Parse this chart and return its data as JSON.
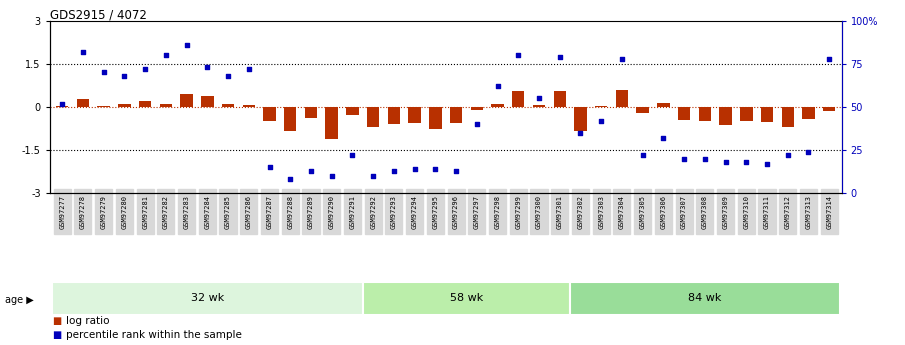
{
  "title": "GDS2915 / 4072",
  "samples": [
    "GSM97277",
    "GSM97278",
    "GSM97279",
    "GSM97280",
    "GSM97281",
    "GSM97282",
    "GSM97283",
    "GSM97284",
    "GSM97285",
    "GSM97286",
    "GSM97287",
    "GSM97288",
    "GSM97289",
    "GSM97290",
    "GSM97291",
    "GSM97292",
    "GSM97293",
    "GSM97294",
    "GSM97295",
    "GSM97296",
    "GSM97297",
    "GSM97298",
    "GSM97299",
    "GSM97300",
    "GSM97301",
    "GSM97302",
    "GSM97303",
    "GSM97304",
    "GSM97305",
    "GSM97306",
    "GSM97307",
    "GSM97308",
    "GSM97309",
    "GSM97310",
    "GSM97311",
    "GSM97312",
    "GSM97313",
    "GSM97314"
  ],
  "log_ratio": [
    0.04,
    0.28,
    0.05,
    0.1,
    0.22,
    0.1,
    0.45,
    0.38,
    0.1,
    0.06,
    -0.5,
    -0.85,
    -0.4,
    -1.1,
    -0.28,
    -0.7,
    -0.6,
    -0.55,
    -0.75,
    -0.55,
    -0.1,
    0.12,
    0.55,
    0.08,
    0.55,
    -0.85,
    0.04,
    0.6,
    -0.22,
    0.15,
    -0.45,
    -0.48,
    -0.62,
    -0.48,
    -0.52,
    -0.68,
    -0.42,
    -0.15
  ],
  "percentile_rank": [
    52,
    82,
    70,
    68,
    72,
    80,
    86,
    73,
    68,
    72,
    15,
    8,
    13,
    10,
    22,
    10,
    13,
    14,
    14,
    13,
    40,
    62,
    80,
    55,
    79,
    35,
    42,
    78,
    22,
    32,
    20,
    20,
    18,
    18,
    17,
    22,
    24,
    78
  ],
  "group_boundaries": [
    0,
    15,
    25,
    38
  ],
  "group_labels": [
    "32 wk",
    "58 wk",
    "84 wk"
  ],
  "group_colors_light": [
    "#e0f5e0",
    "#c8edbc",
    "#a8dca8"
  ],
  "bar_color": "#b83000",
  "dot_color": "#0000bb",
  "bg_color": "#ffffff",
  "ylim_left": [
    -3,
    3
  ],
  "ylim_right": [
    0,
    100
  ],
  "yticks_left": [
    -3,
    -1.5,
    0,
    1.5,
    3
  ],
  "yticks_right": [
    0,
    25,
    50,
    75,
    100
  ],
  "ytick_labels_right": [
    "0",
    "25",
    "50",
    "75",
    "100%"
  ],
  "legend_log_ratio": "log ratio",
  "legend_percentile": "percentile rank within the sample"
}
